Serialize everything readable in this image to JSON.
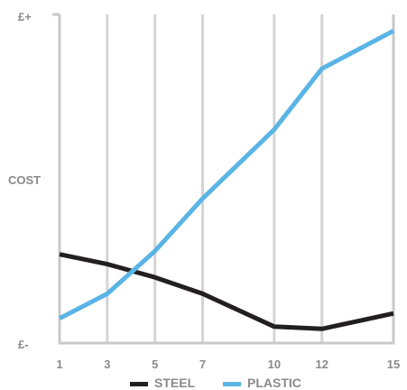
{
  "chart_data": {
    "type": "line",
    "x": [
      1,
      3,
      5,
      7,
      10,
      12,
      15
    ],
    "x_tick_labels": [
      "1",
      "3",
      "5",
      "7",
      "10",
      "12",
      "15"
    ],
    "xlim": [
      1,
      15
    ],
    "ylabel": "COST",
    "y_top_label": "£+",
    "y_bottom_label": "£-",
    "ylim": [
      0,
      100
    ],
    "grid": "vertical",
    "legend_position": "bottom",
    "series": [
      {
        "name": "STEEL",
        "color": "#231f20",
        "values": [
          27,
          24,
          20,
          15,
          5,
          4.3,
          9
        ]
      },
      {
        "name": "PLASTIC",
        "color": "#5ab4e5",
        "values": [
          7.5,
          15,
          28,
          44,
          65,
          83.5,
          95
        ]
      }
    ]
  }
}
